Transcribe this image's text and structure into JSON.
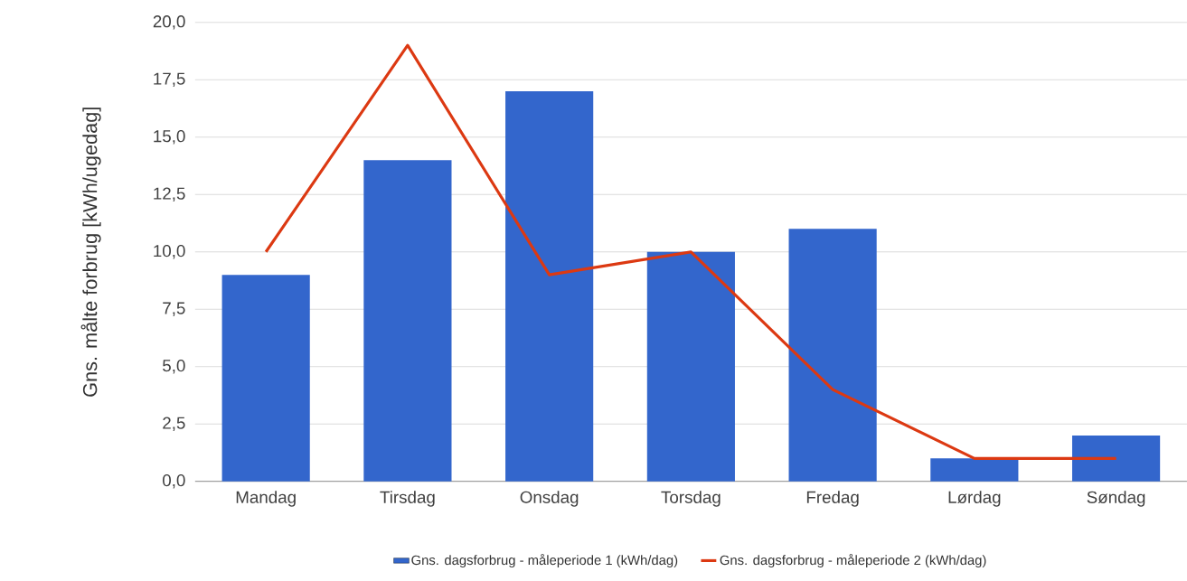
{
  "chart_data": {
    "type": "bar",
    "ylabel": "Gns. målte forbrug [kWh/ugedag]",
    "categories": [
      "Mandag",
      "Tirsdag",
      "Onsdag",
      "Torsdag",
      "Fredag",
      "Lørdag",
      "Søndag"
    ],
    "series": [
      {
        "name": "Gns. dagsforbrug - måleperiode 1 (kWh/dag)",
        "color": "#3366cc",
        "values": [
          9,
          14,
          17,
          10,
          11,
          1,
          2
        ]
      },
      {
        "name": "Gns. dagsforbrug - måleperiode 2 (kWh/dag)",
        "type": "line",
        "color": "#dc3912",
        "values": [
          10,
          19,
          9,
          10,
          4,
          1,
          1
        ]
      }
    ],
    "ylim": [
      0,
      20
    ],
    "yticks": [
      {
        "value": 0,
        "label": "0,0"
      },
      {
        "value": 2.5,
        "label": "2,5"
      },
      {
        "value": 5,
        "label": "5,0"
      },
      {
        "value": 7.5,
        "label": "7,5"
      },
      {
        "value": 10,
        "label": "10,0"
      },
      {
        "value": 12.5,
        "label": "12,5"
      },
      {
        "value": 15,
        "label": "15,0"
      },
      {
        "value": 17.5,
        "label": "17,5"
      },
      {
        "value": 20,
        "label": "20,0"
      }
    ],
    "grid": "y",
    "legend": "bottom",
    "marker": "none",
    "line_style": "solid"
  }
}
